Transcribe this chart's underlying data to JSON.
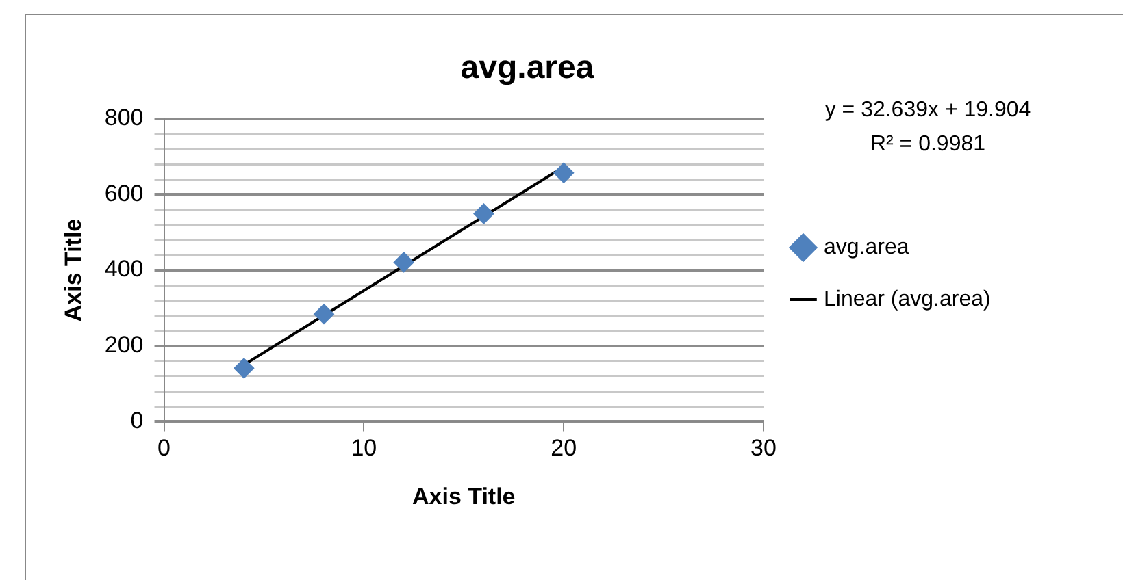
{
  "chart_data": {
    "type": "scatter",
    "title": "avg.area",
    "xlabel": "Axis Title",
    "ylabel": "Axis Title",
    "series": [
      {
        "name": "avg.area",
        "type": "scatter",
        "color": "#4f81bd",
        "marker": "diamond",
        "x": [
          4,
          8,
          12,
          16,
          20
        ],
        "values": [
          141,
          284,
          421,
          549,
          657
        ]
      },
      {
        "name": "Linear (avg.area)",
        "type": "line",
        "color": "#000000",
        "marker": "none",
        "x": [
          4,
          20
        ],
        "values": [
          150,
          673
        ]
      }
    ],
    "xlim": [
      0,
      30
    ],
    "xticks": [
      0,
      10,
      20,
      30
    ],
    "ylim": [
      0,
      800
    ],
    "yticks": [
      0,
      {
        "value": 40,
        "label": null
      },
      {
        "value": 80,
        "label": null
      },
      {
        "value": 120,
        "label": null
      },
      {
        "value": 160,
        "label": null
      },
      200,
      {
        "value": 240,
        "label": null
      },
      {
        "value": 280,
        "label": null
      },
      {
        "value": 320,
        "label": null
      },
      {
        "value": 360,
        "label": null
      },
      400,
      {
        "value": 440,
        "label": null
      },
      {
        "value": 480,
        "label": null
      },
      {
        "value": 520,
        "label": null
      },
      {
        "value": 560,
        "label": null
      },
      600,
      {
        "value": 640,
        "label": null
      },
      {
        "value": 680,
        "label": null
      },
      {
        "value": 720,
        "label": null
      },
      {
        "value": 760,
        "label": null
      },
      800
    ],
    "grid": "y",
    "legend": "right",
    "annotations": [
      "y = 32.639x + 19.904",
      "R² = 0.9981"
    ]
  }
}
